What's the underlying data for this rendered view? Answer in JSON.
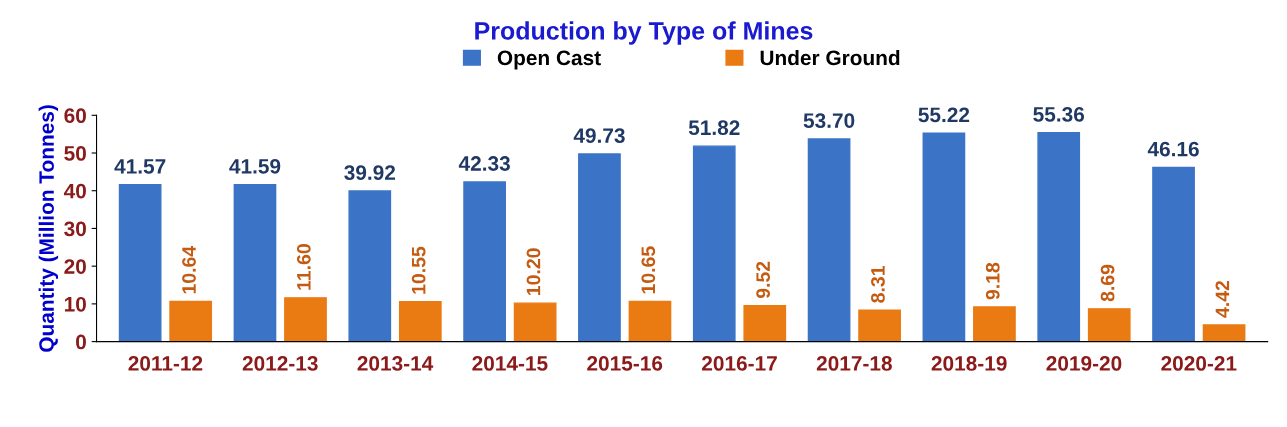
{
  "chart_data": {
    "type": "bar",
    "title": "Production by Type of Mines",
    "ylabel": "Quantity (Million Tonnes)",
    "categories": [
      "2011-12",
      "2012-13",
      "2013-14",
      "2014-15",
      "2015-16",
      "2016-17",
      "2017-18",
      "2018-19",
      "2019-20",
      "2020-21"
    ],
    "series": [
      {
        "name": "Open Cast",
        "color": "#3b74c6",
        "values": [
          41.57,
          41.59,
          39.92,
          42.33,
          49.73,
          51.82,
          53.7,
          55.22,
          55.36,
          46.16
        ],
        "value_labels": [
          "41.57",
          "41.59",
          "39.92",
          "42.33",
          "49.73",
          "51.82",
          "53.70",
          "55.22",
          "55.36",
          "46.16"
        ]
      },
      {
        "name": "Under Ground",
        "color": "#ea7a12",
        "values": [
          10.64,
          11.6,
          10.55,
          10.2,
          10.65,
          9.52,
          8.31,
          9.18,
          8.69,
          4.42
        ],
        "value_labels": [
          "10.64",
          "11.60",
          "10.55",
          "10.20",
          "10.65",
          "9.52",
          "8.31",
          "9.18",
          "8.69",
          "4.42"
        ]
      }
    ],
    "ylim": [
      0,
      60
    ],
    "yticks": [
      0,
      10,
      20,
      30,
      40,
      50,
      60
    ],
    "grid": false,
    "legend": "top"
  }
}
